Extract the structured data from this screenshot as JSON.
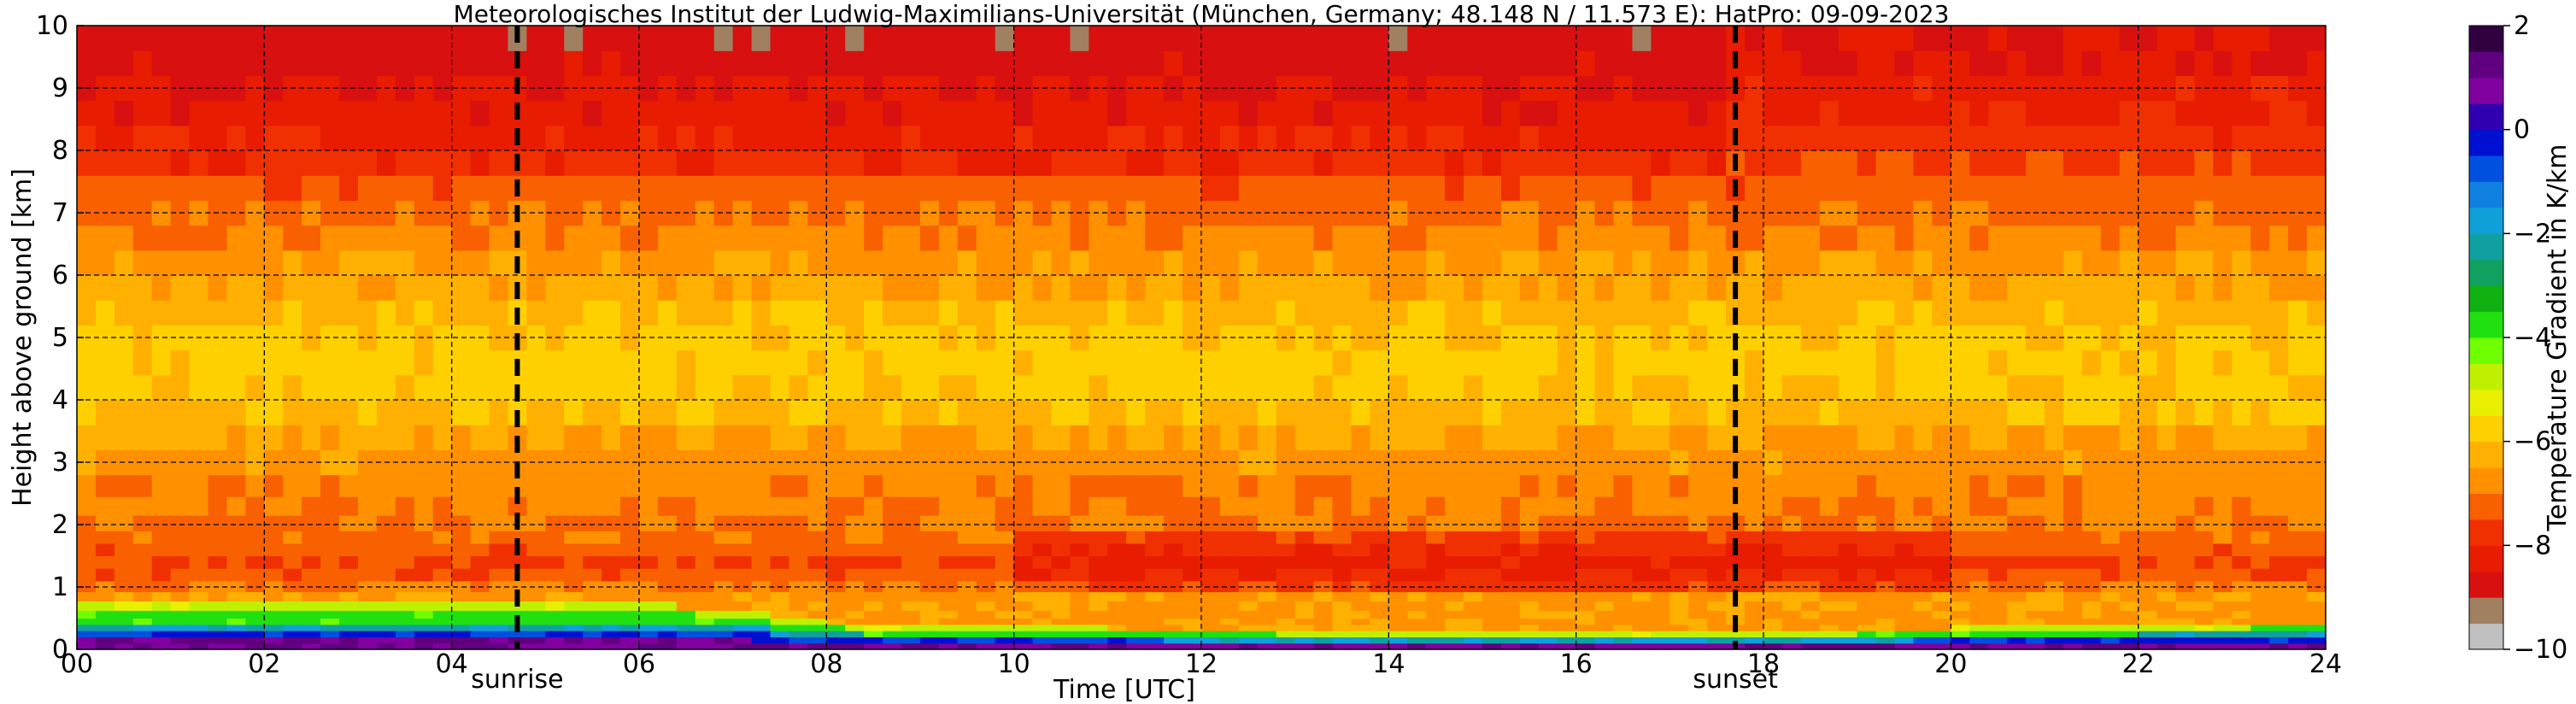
{
  "chart_data": {
    "type": "heatmap",
    "title": "Meteorologisches Institut der Ludwig-Maximilians-Universität (München, Germany; 48.148 N / 11.573 E):    HatPro: 09-09-2023",
    "xlabel": "Time [UTC]",
    "ylabel": "Height above ground [km]",
    "colorbar_label": "Temperature Gradient in K/km",
    "xlim": [
      0,
      24
    ],
    "ylim": [
      0,
      10
    ],
    "clim": [
      -10,
      2
    ],
    "x_ticks": [
      0,
      2,
      4,
      6,
      8,
      10,
      12,
      14,
      16,
      18,
      20,
      22,
      24
    ],
    "x_tick_labels": [
      "00",
      "02",
      "04",
      "06",
      "08",
      "10",
      "12",
      "14",
      "16",
      "18",
      "20",
      "22",
      "24"
    ],
    "y_ticks": [
      0,
      1,
      2,
      3,
      4,
      5,
      6,
      7,
      8,
      9,
      10
    ],
    "y_tick_labels": [
      "0",
      "1",
      "2",
      "3",
      "4",
      "5",
      "6",
      "7",
      "8",
      "9",
      "10"
    ],
    "colorbar_ticks": [
      2,
      0,
      -2,
      -4,
      -6,
      -8,
      -10
    ],
    "colorbar_tick_labels": [
      "2",
      "0",
      "−2",
      "−4",
      "−6",
      "−8",
      "−10"
    ],
    "grid": true,
    "markers": [
      {
        "label": "sunrise",
        "time": 4.7
      },
      {
        "label": "sunset",
        "time": 17.7
      }
    ],
    "height_profile": {
      "heights_km": [
        0.05,
        0.15,
        0.25,
        0.35,
        0.45,
        0.55,
        0.7,
        0.85,
        1.0,
        1.2,
        1.4,
        1.6,
        1.8,
        2.0,
        2.3,
        2.6,
        3.0,
        3.4,
        3.8,
        4.2,
        4.6,
        5.0,
        5.4,
        5.8,
        6.2,
        6.6,
        7.0,
        7.4,
        7.8,
        8.2,
        8.6,
        9.0,
        9.4,
        9.8
      ],
      "gradient_K_per_km": [
        0.5,
        -1.0,
        -3.0,
        -4.0,
        -5.5,
        -6.5,
        -6.8,
        -6.9,
        -7.0,
        -7.4,
        -7.6,
        -7.3,
        -7.1,
        -7.0,
        -6.9,
        -6.9,
        -6.7,
        -6.5,
        -6.1,
        -5.9,
        -5.8,
        -5.9,
        -6.1,
        -6.4,
        -6.6,
        -6.9,
        -7.1,
        -7.3,
        -7.6,
        -7.8,
        -8.0,
        -8.2,
        -8.4,
        -8.5
      ]
    },
    "boundary_layer_top_km": {
      "times": [
        0,
        2,
        4,
        5,
        6,
        7,
        8,
        9,
        10,
        12,
        14,
        16,
        18,
        20,
        22,
        24
      ],
      "values": [
        0.75,
        0.72,
        0.7,
        0.72,
        0.74,
        0.65,
        0.45,
        0.35,
        0.38,
        0.32,
        0.3,
        0.3,
        0.28,
        0.35,
        0.42,
        0.45
      ]
    },
    "colormap": {
      "levels": [
        -10,
        -9.5,
        -9,
        -8.5,
        -8,
        -7.5,
        -7,
        -6.5,
        -6,
        -5.5,
        -5,
        -4.5,
        -4,
        -3.5,
        -3,
        -2.5,
        -2,
        -1.5,
        -1,
        -0.5,
        0,
        0.5,
        1,
        1.5,
        2
      ],
      "colors": [
        "#c0c0c0",
        "#a08060",
        "#d81010",
        "#e81c00",
        "#f03000",
        "#f86000",
        "#ff9000",
        "#ffb000",
        "#ffd000",
        "#e8f000",
        "#c0f000",
        "#70ff00",
        "#20e010",
        "#10b010",
        "#10a060",
        "#10a0a0",
        "#10a0d8",
        "#1080e0",
        "#0050e0",
        "#0010d0",
        "#3000b0",
        "#8000a0",
        "#600080",
        "#300040",
        "#000000"
      ]
    }
  }
}
